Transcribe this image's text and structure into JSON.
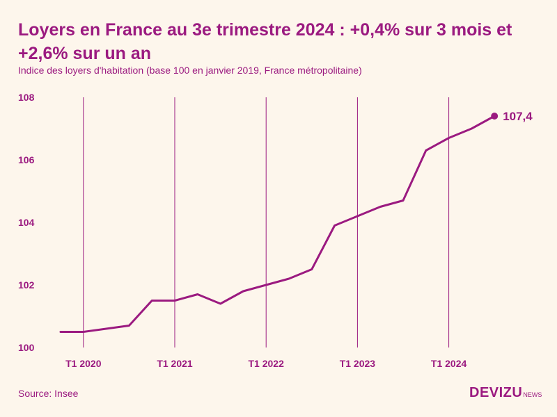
{
  "header": {
    "title": "Loyers en France au 3e trimestre 2024 : +0,4% sur 3 mois et +2,6% sur un an",
    "subtitle": "Indice des loyers d'habitation (base 100 en janvier 2019, France métropolitaine)"
  },
  "footer": {
    "source": "Source: Insee",
    "logo_main": "DEVIZU",
    "logo_small": "NEWS"
  },
  "colors": {
    "accent": "#9b1a80",
    "background": "#fdf6ec"
  },
  "chart_data": {
    "type": "line",
    "title": "Loyers en France au 3e trimestre 2024 : +0,4% sur 3 mois et +2,6% sur un an",
    "subtitle": "Indice des loyers d'habitation (base 100 en janvier 2019, France métropolitaine)",
    "xlabel": "",
    "ylabel": "",
    "ylim": [
      100,
      108
    ],
    "yticks": [
      100,
      102,
      104,
      106,
      108
    ],
    "xticks": [
      "T1 2020",
      "T1 2021",
      "T1 2022",
      "T1 2023",
      "T1 2024"
    ],
    "grid": "vertical lines at T1 of each year",
    "legend": "none",
    "end_label": "107,4",
    "series": [
      {
        "x": [
          "T4 2019",
          "T1 2020",
          "T2 2020",
          "T3 2020",
          "T4 2020",
          "T1 2021",
          "T2 2021",
          "T3 2021",
          "T4 2021",
          "T1 2022",
          "T2 2022",
          "T3 2022",
          "T4 2022",
          "T1 2023",
          "T2 2023",
          "T3 2023",
          "T4 2023",
          "T1 2024",
          "T2 2024",
          "T3 2024"
        ],
        "values": [
          100.5,
          100.5,
          100.6,
          100.7,
          101.5,
          101.5,
          101.7,
          101.4,
          101.8,
          102.0,
          102.2,
          102.5,
          103.9,
          104.2,
          104.5,
          104.7,
          106.3,
          106.7,
          107.0,
          107.4
        ]
      }
    ]
  }
}
